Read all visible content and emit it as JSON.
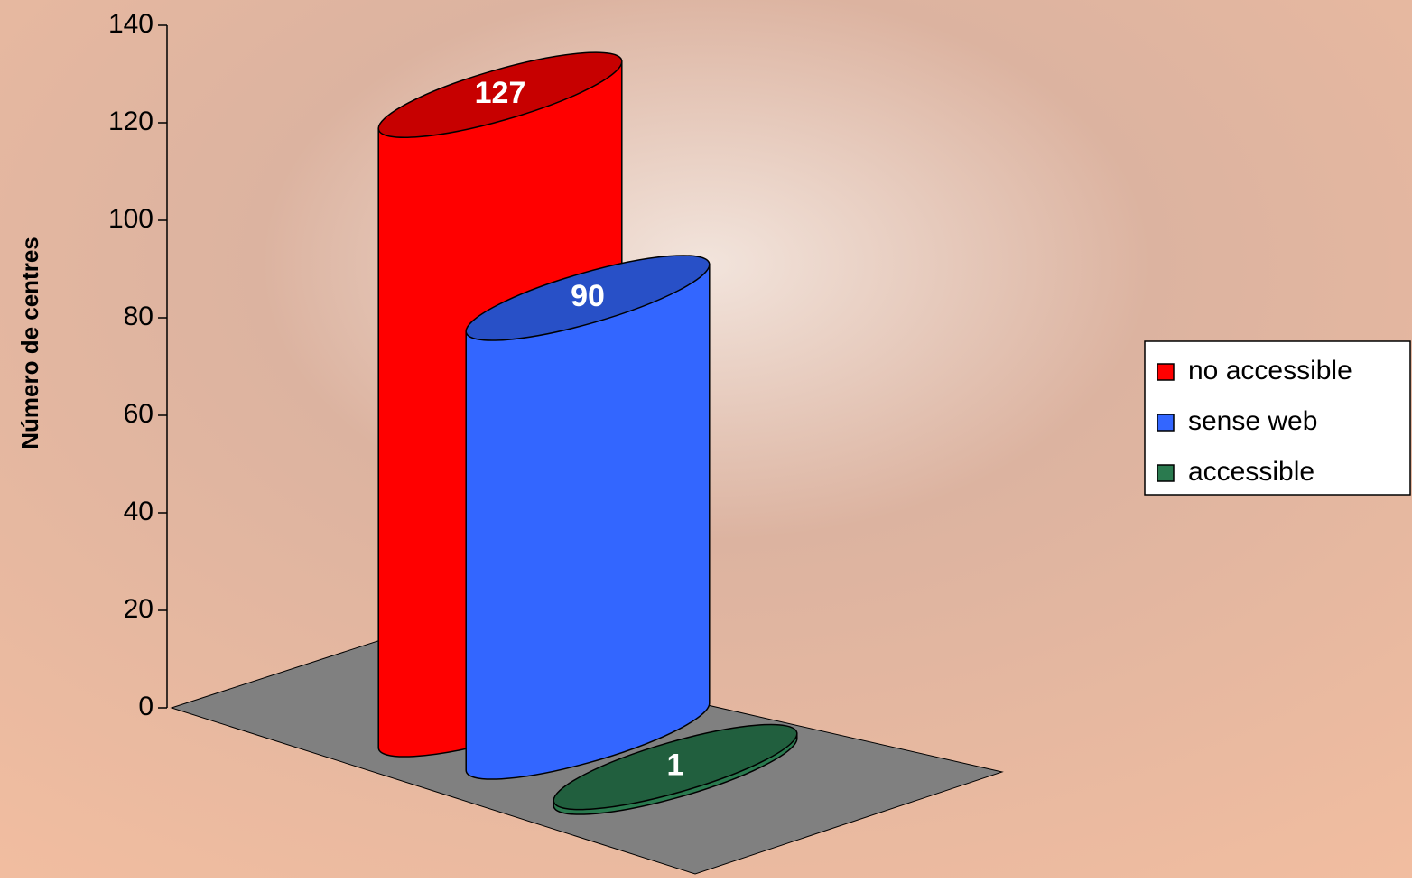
{
  "chart_data": {
    "type": "bar",
    "y_label": "Número de centres",
    "ylim": [
      0,
      140
    ],
    "yticks": [
      0,
      20,
      40,
      60,
      80,
      100,
      120,
      140
    ],
    "legend": "right",
    "series": [
      {
        "name": "no accessible",
        "color": "#ff0000",
        "values": [
          127
        ]
      },
      {
        "name": "sense web",
        "color": "#3366ff",
        "values": [
          90
        ]
      },
      {
        "name": "accessible",
        "color": "#2a7a4f",
        "values": [
          1
        ]
      }
    ]
  }
}
